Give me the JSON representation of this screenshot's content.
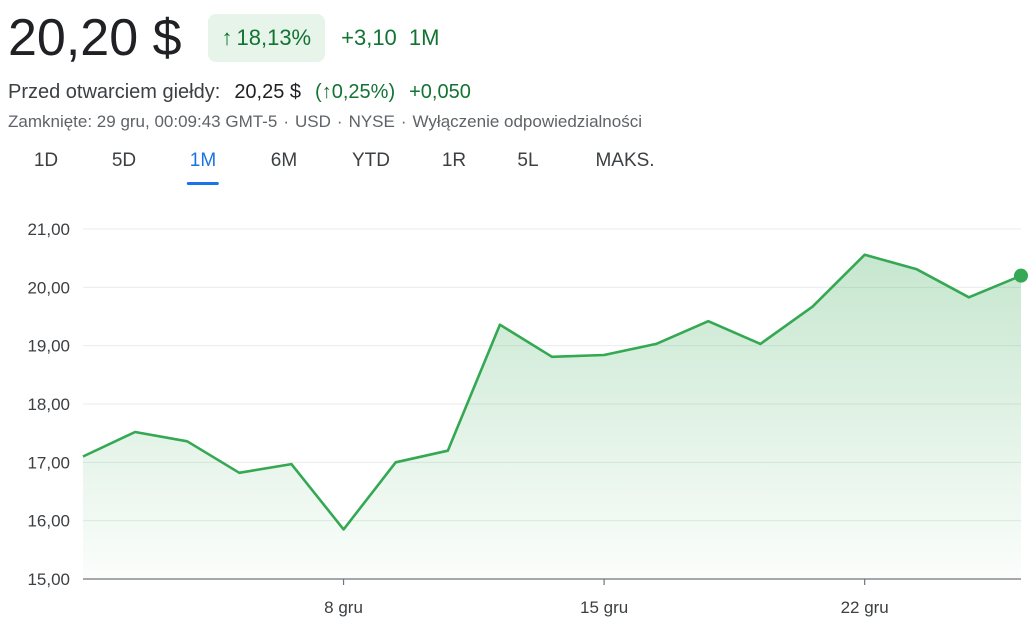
{
  "header": {
    "price": "20,20 $",
    "change_pct": "18,13%",
    "change_abs": "+3,10",
    "change_period": "1M",
    "up_arrow_icon": "arrow-up-icon"
  },
  "premarket": {
    "label": "Przed otwarciem giełdy:",
    "price": "20,25 $",
    "pct": "0,25%",
    "abs": "+0,050"
  },
  "meta": {
    "closed": "Zamknięte: 29 gru, 00:09:43 GMT-5",
    "currency": "USD",
    "exchange": "NYSE",
    "disclaimer": "Wyłączenie odpowiedzialności",
    "separator": "·"
  },
  "tabs": [
    {
      "label": "1D",
      "active": false
    },
    {
      "label": "5D",
      "active": false
    },
    {
      "label": "1M",
      "active": true
    },
    {
      "label": "6M",
      "active": false
    },
    {
      "label": "YTD",
      "active": false
    },
    {
      "label": "1R",
      "active": false
    },
    {
      "label": "5L",
      "active": false
    },
    {
      "label": "MAKS.",
      "active": false
    }
  ],
  "colors": {
    "positive": "#137333",
    "badge_bg": "#e6f4ea",
    "line": "#34a853",
    "accent": "#1a73e8"
  },
  "chart_data": {
    "type": "area",
    "ylim": [
      15,
      21
    ],
    "yticks": [
      15,
      16,
      17,
      18,
      19,
      20,
      21
    ],
    "ytick_labels": [
      "15,00",
      "16,00",
      "17,00",
      "18,00",
      "19,00",
      "20,00",
      "21,00"
    ],
    "xticks": [
      {
        "label": "8 gru",
        "index": 5
      },
      {
        "label": "15 gru",
        "index": 10
      },
      {
        "label": "22 gru",
        "index": 15
      }
    ],
    "grid": true,
    "series": [
      {
        "values": [
          17.1,
          17.52,
          17.36,
          16.82,
          16.97,
          15.85,
          17.0,
          17.2,
          19.36,
          18.81,
          18.84,
          19.03,
          19.42,
          19.03,
          19.67,
          20.56,
          20.31,
          19.83,
          20.2
        ]
      }
    ]
  }
}
